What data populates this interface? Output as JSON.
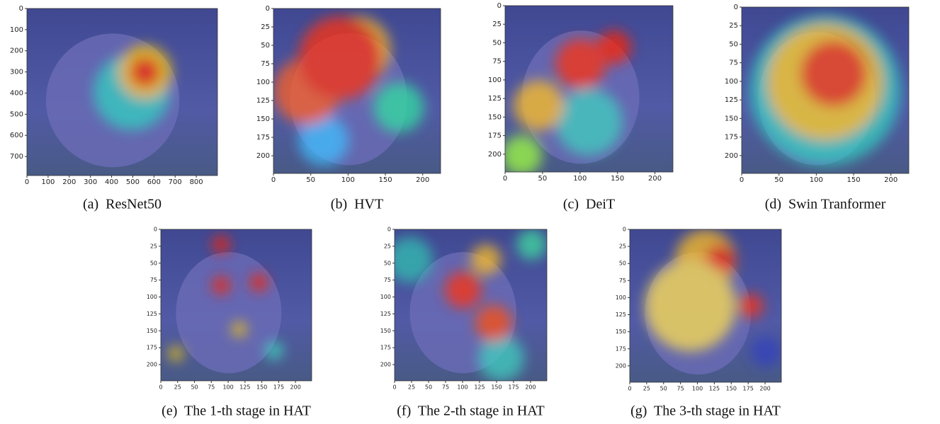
{
  "figure": {
    "panels": [
      {
        "caption": "(a)  ResNet50",
        "xlim": [
          0,
          900
        ],
        "ylim": [
          0,
          790
        ],
        "xticks": [
          0,
          100,
          200,
          300,
          400,
          500,
          600,
          700,
          800
        ],
        "yticks": [
          0,
          100,
          200,
          300,
          400,
          500,
          600,
          700
        ]
      },
      {
        "caption": "(b)  HVT",
        "xlim": [
          0,
          224
        ],
        "ylim": [
          0,
          224
        ],
        "xticks": [
          0,
          50,
          100,
          150,
          200
        ],
        "yticks": [
          0,
          25,
          50,
          75,
          100,
          125,
          150,
          175,
          200
        ]
      },
      {
        "caption": "(c)  DeiT",
        "xlim": [
          0,
          224
        ],
        "ylim": [
          0,
          224
        ],
        "xticks": [
          0,
          50,
          100,
          150,
          200
        ],
        "yticks": [
          0,
          25,
          50,
          75,
          100,
          125,
          150,
          175,
          200
        ]
      },
      {
        "caption": "(d)  Swin Tranformer",
        "xlim": [
          0,
          224
        ],
        "ylim": [
          0,
          224
        ],
        "xticks": [
          0,
          50,
          100,
          150,
          200
        ],
        "yticks": [
          0,
          25,
          50,
          75,
          100,
          125,
          150,
          175,
          200
        ]
      },
      {
        "caption": "(e)  The 1-th stage in HAT",
        "xlim": [
          0,
          224
        ],
        "ylim": [
          0,
          224
        ],
        "xticks": [
          0,
          25,
          50,
          75,
          100,
          125,
          150,
          175,
          200
        ],
        "yticks": [
          0,
          25,
          50,
          75,
          100,
          125,
          150,
          175,
          200
        ]
      },
      {
        "caption": "(f)  The 2-th stage in HAT",
        "xlim": [
          0,
          224
        ],
        "ylim": [
          0,
          224
        ],
        "xticks": [
          0,
          25,
          50,
          75,
          100,
          125,
          150,
          175,
          200
        ],
        "yticks": [
          0,
          25,
          50,
          75,
          100,
          125,
          150,
          175,
          200
        ]
      },
      {
        "caption": "(g)  The 3-th stage in HAT",
        "xlim": [
          0,
          224
        ],
        "ylim": [
          0,
          224
        ],
        "xticks": [
          0,
          25,
          50,
          75,
          100,
          125,
          150,
          175,
          200
        ],
        "yticks": [
          0,
          25,
          50,
          75,
          100,
          125,
          150,
          175,
          200
        ]
      }
    ]
  }
}
